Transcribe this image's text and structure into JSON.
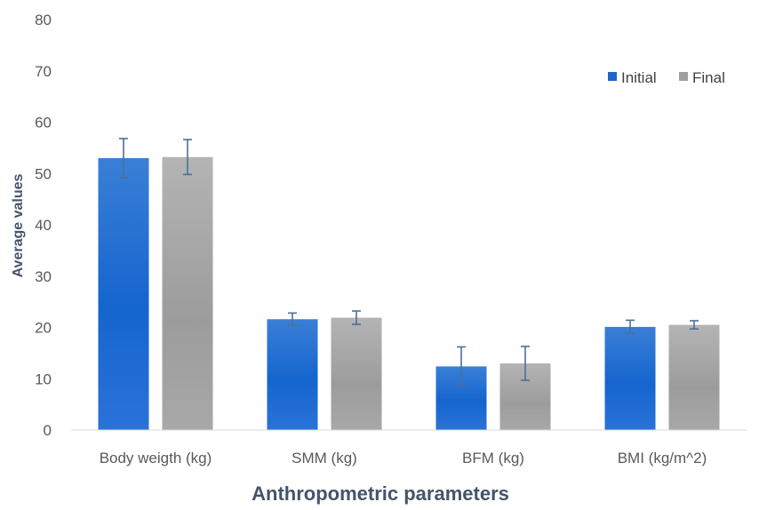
{
  "chart_data": {
    "type": "bar",
    "title": "",
    "xlabel": "Anthropometric parameters",
    "ylabel": "Average values",
    "categories": [
      "Body weigth (kg)",
      "SMM (kg)",
      "BFM (kg)",
      "BMI (kg/m^2)"
    ],
    "ylim": [
      0,
      80
    ],
    "yticks": [
      0,
      10,
      20,
      30,
      40,
      50,
      60,
      70,
      80
    ],
    "grid": false,
    "legend_position": "top-right",
    "series": [
      {
        "name": "Initial",
        "values": [
          53.0,
          21.6,
          12.4,
          20.1
        ],
        "errors": [
          3.8,
          1.2,
          3.8,
          1.3
        ],
        "color": "#1f64c8"
      },
      {
        "name": "Final",
        "values": [
          53.2,
          21.9,
          13.0,
          20.5
        ],
        "errors": [
          3.4,
          1.3,
          3.3,
          0.8
        ],
        "color": "#a0a0a0"
      }
    ]
  }
}
